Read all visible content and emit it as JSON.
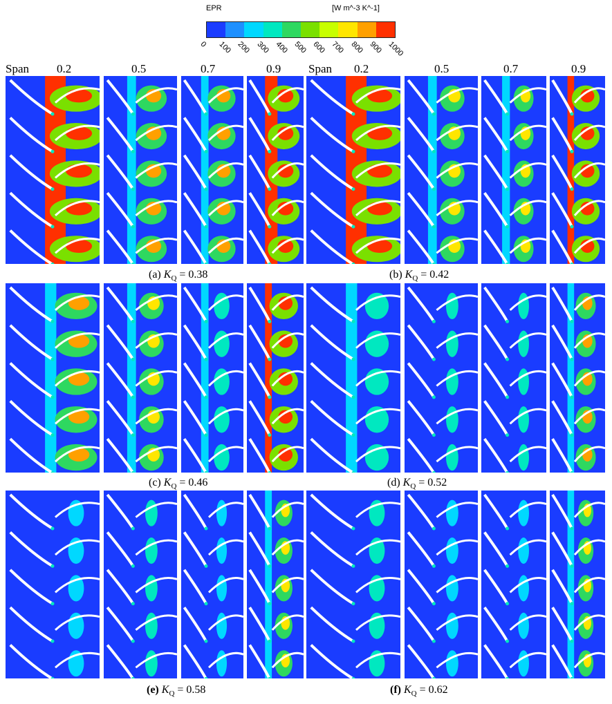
{
  "colorbar": {
    "variable": "EPR",
    "units": "[W m^-3 K^-1]",
    "ticks": [
      "0",
      "100",
      "200",
      "300",
      "400",
      "500",
      "600",
      "700",
      "800",
      "900",
      "1000"
    ],
    "colors": [
      "#1a3cff",
      "#1e90ff",
      "#00d8ff",
      "#00e8c0",
      "#2ed860",
      "#7ae000",
      "#c8ff00",
      "#ffe600",
      "#ffa000",
      "#ff3000"
    ]
  },
  "span_header": {
    "label": "Span",
    "values": [
      "0.2",
      "0.5",
      "0.7",
      "0.9"
    ]
  },
  "cases": [
    {
      "letter": "(a)",
      "k_symbol": "K",
      "k_sub": "Q",
      "value": "= 0.38",
      "bold": false
    },
    {
      "letter": "(b)",
      "k_symbol": "K",
      "k_sub": "Q",
      "value": "= 0.42",
      "bold": false
    },
    {
      "letter": "(c)",
      "k_symbol": "K",
      "k_sub": "Q",
      "value": "= 0.46",
      "bold": false
    },
    {
      "letter": "(d)",
      "k_symbol": "K",
      "k_sub": "Q",
      "value": "= 0.52",
      "bold": false
    },
    {
      "letter": "(e)",
      "k_symbol": "K",
      "k_sub": "Q",
      "value": "= 0.58",
      "bold": true
    },
    {
      "letter": "(f)",
      "k_symbol": "K",
      "k_sub": "Q",
      "value": "= 0.62",
      "bold": true
    }
  ],
  "panel_intensity": [
    [
      1.0,
      0.75,
      0.8,
      1.0,
      0.95,
      0.6,
      0.55,
      0.9
    ],
    [
      0.8,
      0.6,
      0.45,
      0.9,
      0.45,
      0.3,
      0.25,
      0.65
    ],
    [
      0.15,
      0.2,
      0.15,
      0.55,
      0.2,
      0.15,
      0.15,
      0.5
    ]
  ]
}
